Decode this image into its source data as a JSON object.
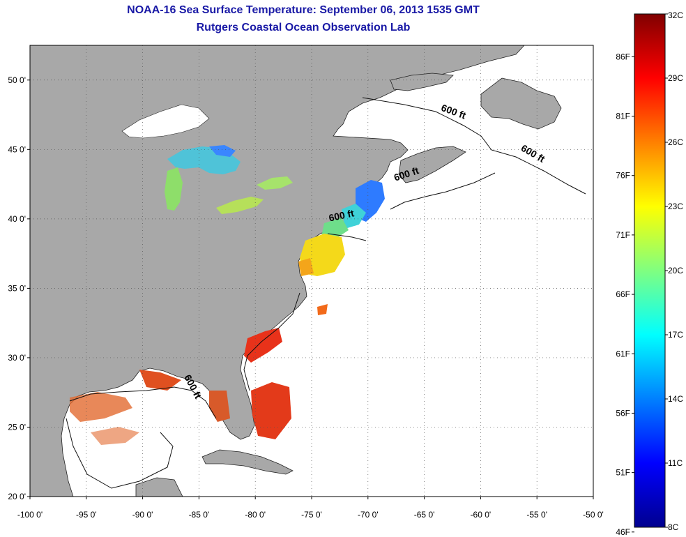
{
  "title": {
    "line1": "NOAA-16 Sea Surface Temperature:  September 06, 2013 1535 GMT",
    "line2": "Rutgers Coastal Ocean Observation Lab"
  },
  "map": {
    "lon_range": [
      -100,
      -50
    ],
    "lat_range": [
      20,
      52.5
    ],
    "lon_ticks": [
      {
        "value": -100,
        "label": "-100 0'"
      },
      {
        "value": -95,
        "label": "-95 0'"
      },
      {
        "value": -90,
        "label": "-90 0'"
      },
      {
        "value": -85,
        "label": "-85 0'"
      },
      {
        "value": -80,
        "label": "-80 0'"
      },
      {
        "value": -75,
        "label": "-75 0'"
      },
      {
        "value": -70,
        "label": "-70 0'"
      },
      {
        "value": -65,
        "label": "-65 0'"
      },
      {
        "value": -60,
        "label": "-60 0'"
      },
      {
        "value": -55,
        "label": "-55 0'"
      },
      {
        "value": -50,
        "label": "-50 0'"
      }
    ],
    "lat_ticks": [
      {
        "value": 20,
        "label": "20 0'"
      },
      {
        "value": 25,
        "label": "25 0'"
      },
      {
        "value": 30,
        "label": "30 0'"
      },
      {
        "value": 35,
        "label": "35 0'"
      },
      {
        "value": 40,
        "label": "40 0'"
      },
      {
        "value": 45,
        "label": "45 0'"
      },
      {
        "value": 50,
        "label": "50 0'"
      }
    ],
    "contour_labels": [
      {
        "text": "600 ft",
        "lon": -62.5,
        "lat": 47.5,
        "angle": 20
      },
      {
        "text": "600 ft",
        "lon": -55.5,
        "lat": 44.5,
        "angle": 30
      },
      {
        "text": "600 ft",
        "lon": -66.5,
        "lat": 43.0,
        "angle": -18
      },
      {
        "text": "600 ft",
        "lon": -72.3,
        "lat": 40.0,
        "angle": -12
      },
      {
        "text": "600 ft",
        "lon": -85.8,
        "lat": 27.8,
        "angle": 62
      }
    ],
    "colors": {
      "land": "#a8a8a8",
      "ocean": "#ffffff",
      "grid": "#555555",
      "title": "#1a1aa6"
    }
  },
  "colorbar": {
    "min_c": 8,
    "max_c": 32,
    "celsius_ticks": [
      {
        "value": 32,
        "label": "32C"
      },
      {
        "value": 29,
        "label": "29C"
      },
      {
        "value": 26,
        "label": "26C"
      },
      {
        "value": 23,
        "label": "23C"
      },
      {
        "value": 20,
        "label": "20C"
      },
      {
        "value": 17,
        "label": "17C"
      },
      {
        "value": 14,
        "label": "14C"
      },
      {
        "value": 11,
        "label": "11C"
      },
      {
        "value": 8,
        "label": "8C"
      }
    ],
    "fahrenheit_ticks": [
      {
        "value": 86,
        "label": "86F"
      },
      {
        "value": 81,
        "label": "81F"
      },
      {
        "value": 76,
        "label": "76F"
      },
      {
        "value": 71,
        "label": "71F"
      },
      {
        "value": 66,
        "label": "66F"
      },
      {
        "value": 61,
        "label": "61F"
      },
      {
        "value": 56,
        "label": "56F"
      },
      {
        "value": 51,
        "label": "51F"
      },
      {
        "value": 46,
        "label": "46F"
      }
    ],
    "stops": [
      "#00008f",
      "#0000ff",
      "#0080ff",
      "#00ffff",
      "#80ff80",
      "#ffff00",
      "#ff8000",
      "#ff0000",
      "#800000"
    ]
  }
}
